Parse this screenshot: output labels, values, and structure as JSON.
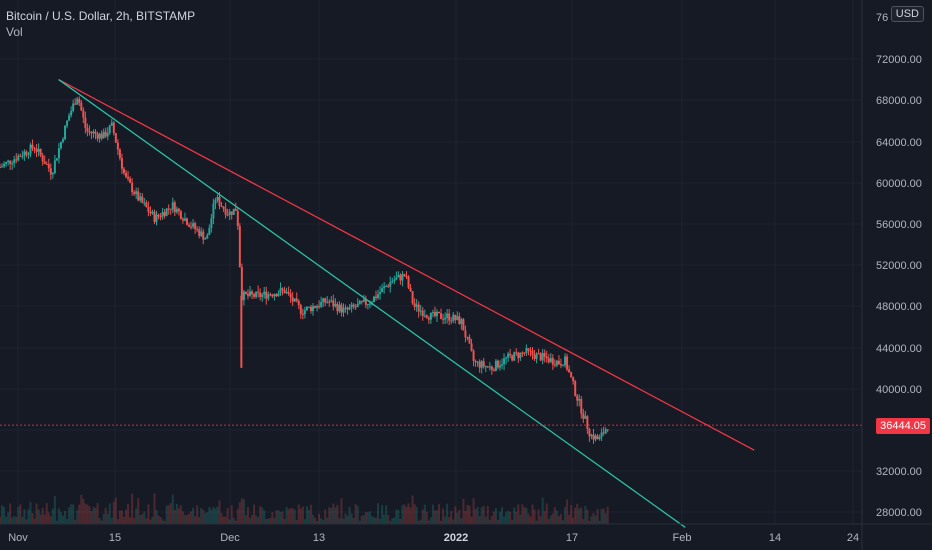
{
  "header": {
    "symbol": "Bitcoin / U.S. Dollar, 2h, BITSTAMP",
    "indicator": "Vol",
    "currency_button": "USD"
  },
  "last_price": "36444.05",
  "colors": {
    "background": "#161a25",
    "up": "#26a69a",
    "down": "#ef5350",
    "upper_trendline": "#f23645",
    "lower_trendline": "#2bbfa4",
    "last_price_line": "#f23645"
  },
  "chart_data": {
    "type": "candlestick",
    "y_axis_ticks": [
      "76",
      "72000.00",
      "68000.00",
      "64000.00",
      "60000.00",
      "56000.00",
      "52000.00",
      "48000.00",
      "44000.00",
      "40000.00",
      "36000.00",
      "32000.00",
      "28000.00"
    ],
    "x_axis_ticks": [
      "Nov",
      "15",
      "Dec",
      "13",
      "2022",
      "17",
      "Feb",
      "14",
      "24"
    ],
    "x_axis_bold": [
      "2022"
    ],
    "ylim": [
      26000,
      77000
    ],
    "grid": true,
    "price_path": [
      {
        "t": 0,
        "p": 61500
      },
      {
        "t": 0.04,
        "p": 63500
      },
      {
        "t": 0.06,
        "p": 61000
      },
      {
        "t": 0.08,
        "p": 66500
      },
      {
        "t": 0.09,
        "p": 68500
      },
      {
        "t": 0.1,
        "p": 65000
      },
      {
        "t": 0.12,
        "p": 64500
      },
      {
        "t": 0.13,
        "p": 65500
      },
      {
        "t": 0.145,
        "p": 60500
      },
      {
        "t": 0.16,
        "p": 58500
      },
      {
        "t": 0.18,
        "p": 56500
      },
      {
        "t": 0.2,
        "p": 57800
      },
      {
        "t": 0.22,
        "p": 56000
      },
      {
        "t": 0.24,
        "p": 54500
      },
      {
        "t": 0.25,
        "p": 58500
      },
      {
        "t": 0.265,
        "p": 57000
      },
      {
        "t": 0.275,
        "p": 57500
      },
      {
        "t": 0.28,
        "p": 49000
      },
      {
        "t": 0.3,
        "p": 49000
      },
      {
        "t": 0.33,
        "p": 49500
      },
      {
        "t": 0.35,
        "p": 47500
      },
      {
        "t": 0.38,
        "p": 48500
      },
      {
        "t": 0.4,
        "p": 47500
      },
      {
        "t": 0.43,
        "p": 48500
      },
      {
        "t": 0.455,
        "p": 50500
      },
      {
        "t": 0.47,
        "p": 51000
      },
      {
        "t": 0.48,
        "p": 48000
      },
      {
        "t": 0.5,
        "p": 47000
      },
      {
        "t": 0.52,
        "p": 47000
      },
      {
        "t": 0.535,
        "p": 46500
      },
      {
        "t": 0.55,
        "p": 42500
      },
      {
        "t": 0.57,
        "p": 42000
      },
      {
        "t": 0.59,
        "p": 43000
      },
      {
        "t": 0.61,
        "p": 43500
      },
      {
        "t": 0.63,
        "p": 43000
      },
      {
        "t": 0.65,
        "p": 42500
      },
      {
        "t": 0.655,
        "p": 42800
      },
      {
        "t": 0.67,
        "p": 39000
      },
      {
        "t": 0.685,
        "p": 35500
      },
      {
        "t": 0.695,
        "p": 35000
      },
      {
        "t": 0.705,
        "p": 36444
      }
    ],
    "spikes": [
      {
        "t": 0.28,
        "p": 42000
      }
    ],
    "trendlines": [
      {
        "from": {
          "t": 0.068,
          "p": 70000
        },
        "to": {
          "t": 0.875,
          "p": 34000
        }
      },
      {
        "from": {
          "t": 0.068,
          "p": 70000
        },
        "to": {
          "t": 0.795,
          "p": 26500
        }
      }
    ]
  }
}
